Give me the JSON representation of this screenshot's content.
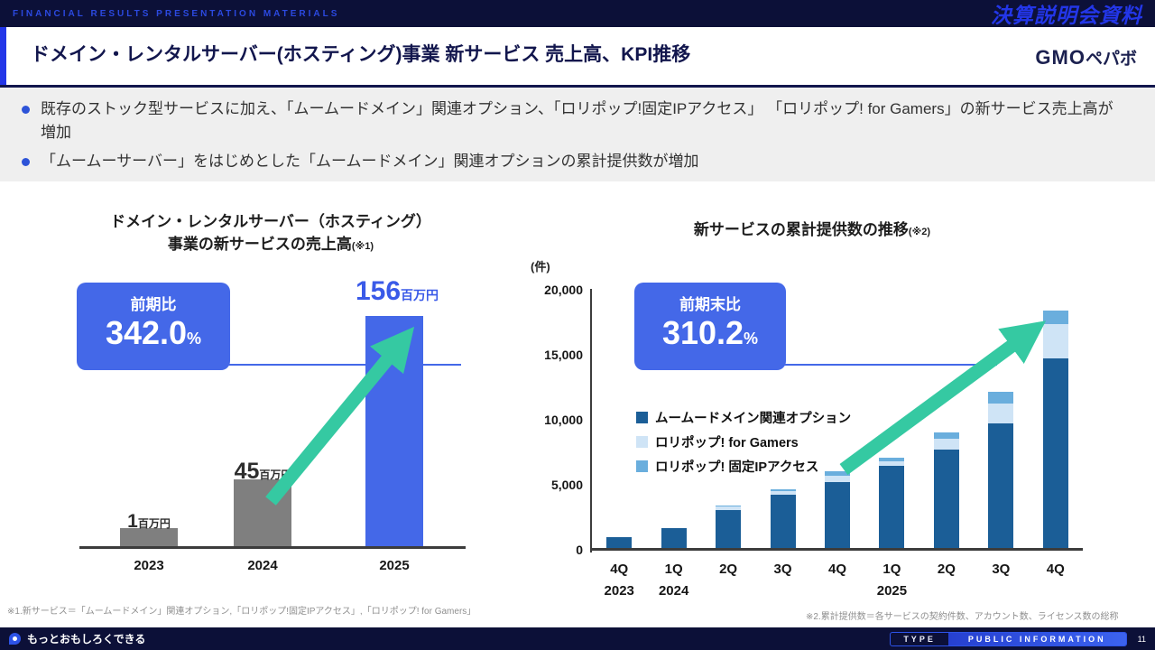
{
  "top_bar": {
    "left_label": "FINANCIAL RESULTS PRESENTATION MATERIALS",
    "right_label": "決算説明会資料"
  },
  "header": {
    "title": "ドメイン・レンタルサーバー(ホスティング)事業 新サービス 売上高、KPI推移",
    "logo_gmo": "GMO",
    "logo_pepabo": "ペパボ"
  },
  "summary_bullets": [
    "既存のストック型サービスに加え、「ムームードメイン」関連オプション、「ロリポップ!固定IPアクセス」 「ロリポップ! for Gamers」の新サービス売上高が増加",
    "「ムームーサーバー」をはじめとした「ムームードメイン」関連オプションの累計提供数が増加"
  ],
  "left_chart": {
    "title_line1": "ドメイン・レンタルサーバー（ホスティング）",
    "title_line2": "事業の新サービスの売上高",
    "title_note": "(※1)",
    "badge": {
      "label": "前期比",
      "value": "342.0",
      "unit": "%"
    },
    "bar_labels": [
      {
        "num": "1",
        "unit": "百万円"
      },
      {
        "num": "45",
        "unit": "百万円"
      },
      {
        "num": "156",
        "unit": "百万円"
      }
    ]
  },
  "right_chart": {
    "title": "新サービスの累計提供数の推移",
    "title_note": "(※2)",
    "unit_label": "(件)",
    "badge": {
      "label": "前期末比",
      "value": "310.2",
      "unit": "%"
    }
  },
  "footnotes": {
    "note1": "※1.新サービス＝「ムームードメイン」関連オプション,「ロリポップ!固定IPアクセス」,「ロリポップ! for Gamers」",
    "note2": "※2.累計提供数＝各サービスの契約件数、アカウント数、ライセンス数の総称"
  },
  "bottom_bar": {
    "tagline": "もっとおもしろくできる",
    "type_label": "TYPE",
    "classification": "PUBLIC INFORMATION",
    "page_number": "11"
  },
  "colors": {
    "navy": "#0c1038",
    "accent_blue": "#2336e8",
    "badge_blue": "#4468e8",
    "bar_gray": "#7f7f7f",
    "arrow_green": "#35c9a2"
  },
  "chart_data": [
    {
      "type": "bar",
      "title": "ドメイン・レンタルサーバー（ホスティング）事業の新サービスの売上高",
      "note": "※1",
      "unit": "百万円",
      "categories": [
        "2023",
        "2024",
        "2025"
      ],
      "values": [
        1,
        45,
        156
      ],
      "bar_colors": [
        "#7f7f7f",
        "#7f7f7f",
        "#4468e8"
      ],
      "ylim": [
        0,
        170
      ],
      "growth_badge": "前期比 342.0%"
    },
    {
      "type": "bar",
      "stacked": true,
      "title": "新サービスの累計提供数の推移",
      "note": "※2",
      "unit": "件",
      "categories": [
        "4Q",
        "1Q",
        "2Q",
        "3Q",
        "4Q",
        "1Q",
        "2Q",
        "3Q",
        "4Q"
      ],
      "year_labels": {
        "0": "2023",
        "1": "2024",
        "5": "2025"
      },
      "series": [
        {
          "name": "ムームードメイン関連オプション",
          "color": "#1b5e97",
          "values": [
            800,
            1550,
            2900,
            4100,
            5100,
            6300,
            7600,
            9600,
            14600
          ]
        },
        {
          "name": "ロリポップ! for Gamers",
          "color": "#cfe4f6",
          "values": [
            0,
            0,
            300,
            250,
            450,
            400,
            800,
            1500,
            2600
          ]
        },
        {
          "name": "ロリポップ! 固定IPアクセス",
          "color": "#6aaedd",
          "values": [
            0,
            0,
            100,
            150,
            350,
            250,
            500,
            900,
            1100
          ]
        }
      ],
      "ylim": [
        0,
        20000
      ],
      "yticks": [
        "0",
        "5,000",
        "10,000",
        "15,000",
        "20,000"
      ],
      "legend_position": "inside-left",
      "grid": false,
      "growth_badge": "前期末比 310.2%"
    }
  ]
}
